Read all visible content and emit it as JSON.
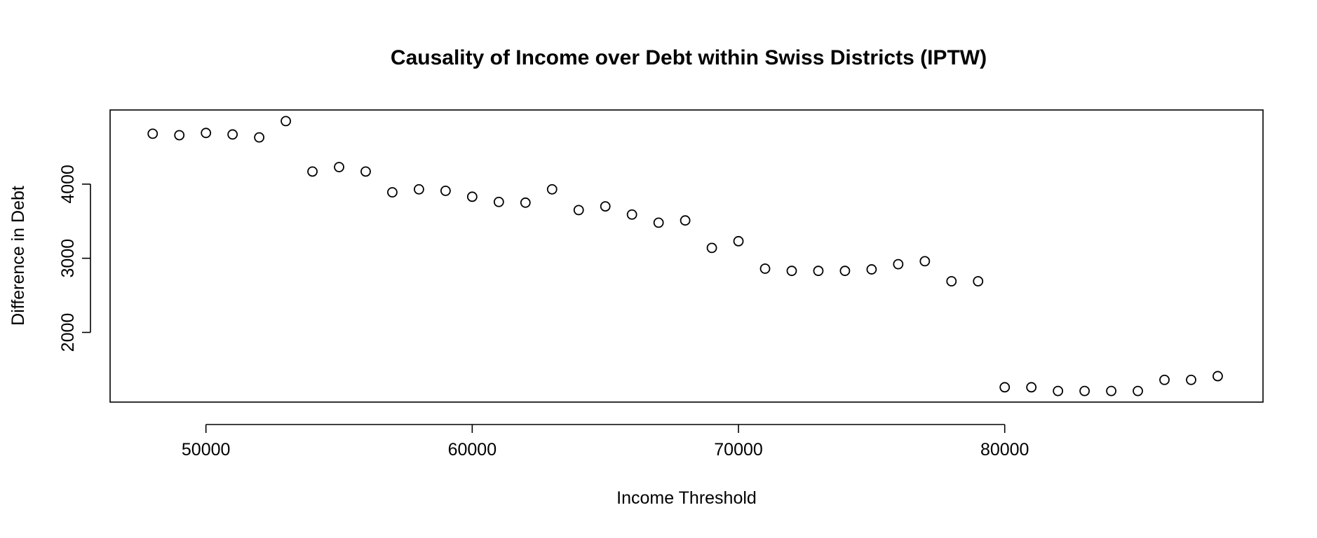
{
  "chart_data": {
    "type": "scatter",
    "title": "Causality of Income over Debt within Swiss Districts (IPTW)",
    "xlabel": "Income Threshold",
    "ylabel": "Difference in Debt",
    "xlim": [
      46400,
      89700
    ],
    "ylim": [
      1060,
      5000
    ],
    "x_ticks": [
      50000,
      60000,
      70000,
      80000
    ],
    "y_ticks": [
      2000,
      3000,
      4000
    ],
    "x_tick_labels": [
      "50000",
      "60000",
      "70000",
      "80000"
    ],
    "y_tick_labels": [
      "2000",
      "3000",
      "4000"
    ],
    "grid": false,
    "marker": "open-circle",
    "series": [
      {
        "x": [
          48000,
          49000,
          50000,
          51000,
          52000,
          53000,
          54000,
          55000,
          56000,
          57000,
          58000,
          59000,
          60000,
          61000,
          62000,
          63000,
          64000,
          65000,
          66000,
          67000,
          68000,
          69000,
          70000,
          71000,
          72000,
          73000,
          74000,
          75000,
          76000,
          77000,
          78000,
          79000,
          80000,
          81000,
          82000,
          83000,
          84000,
          85000,
          86000,
          87000,
          88000
        ],
        "y": [
          4680,
          4660,
          4690,
          4670,
          4630,
          4850,
          4170,
          4230,
          4170,
          3890,
          3930,
          3910,
          3830,
          3760,
          3750,
          3930,
          3650,
          3700,
          3590,
          3480,
          3510,
          3140,
          3230,
          2860,
          2830,
          2830,
          2830,
          2850,
          2920,
          2960,
          2690,
          2690,
          1260,
          1260,
          1210,
          1210,
          1210,
          1210,
          1360,
          1360,
          1410
        ]
      }
    ]
  }
}
